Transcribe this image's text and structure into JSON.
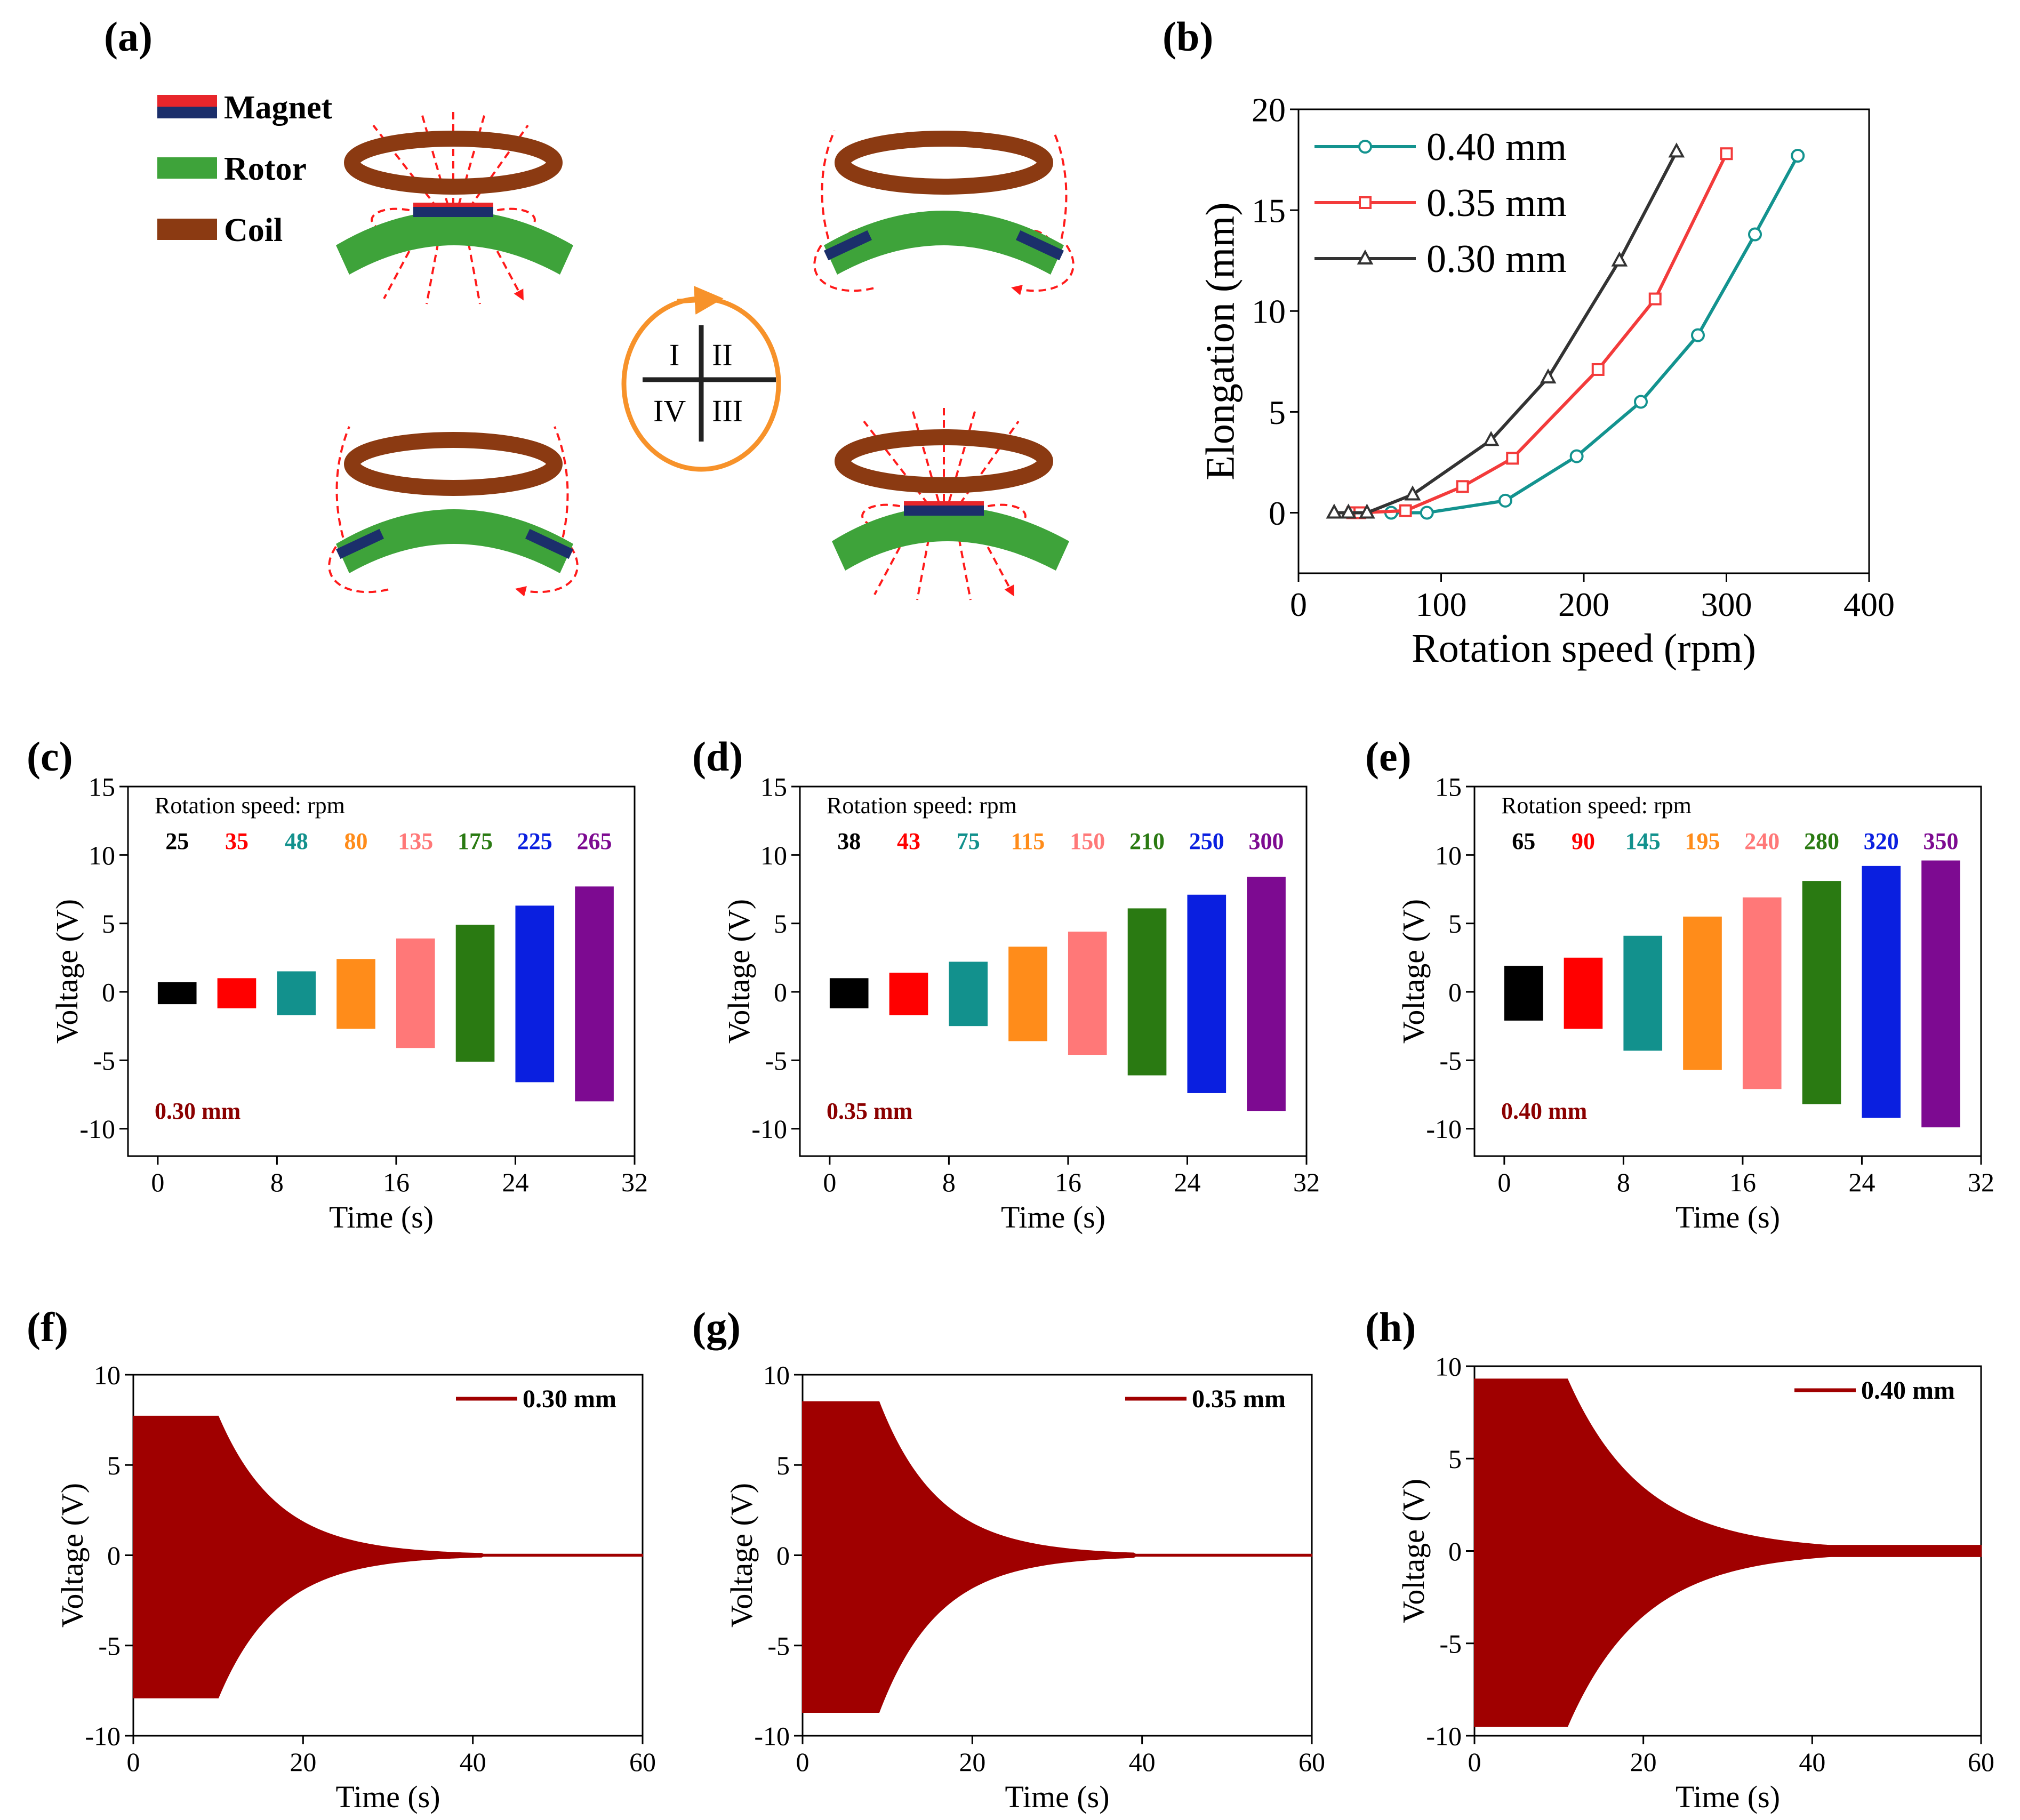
{
  "panel_labels": {
    "a": "(a)",
    "b": "(b)",
    "c": "(c)",
    "d": "(d)",
    "e": "(e)",
    "f": "(f)",
    "g": "(g)",
    "h": "(h)"
  },
  "legend_a": {
    "magnet": "Magnet",
    "rotor": "Rotor",
    "coil": "Coil"
  },
  "quadrants": {
    "q1": "I",
    "q2": "II",
    "q3": "III",
    "q4": "IV"
  },
  "colors": {
    "magnet_red": "#e8262b",
    "magnet_blue": "#1b2f6b",
    "rotor": "#3ea33a",
    "coil": "#8b3a12",
    "field": "#ff1a1a",
    "rotate": "#f7922a",
    "darkred": "#a00000"
  },
  "chart_data": [
    {
      "id": "b",
      "type": "line",
      "title": "",
      "xlabel": "Rotation speed (rpm)",
      "ylabel": "Elongation (mm)",
      "xlim": [
        0,
        400
      ],
      "ylim": [
        -3,
        20
      ],
      "xticks": [
        0,
        100,
        200,
        300,
        400
      ],
      "yticks": [
        0,
        5,
        10,
        15,
        20
      ],
      "series": [
        {
          "name": "0.40 mm",
          "color": "#13938f",
          "marker": "circle",
          "x": [
            65,
            90,
            145,
            195,
            240,
            280,
            320,
            350
          ],
          "y": [
            0,
            0,
            0.6,
            2.8,
            5.5,
            8.8,
            13.8,
            17.7
          ]
        },
        {
          "name": "0.35 mm",
          "color": "#f33b3b",
          "marker": "square",
          "x": [
            38,
            43,
            75,
            115,
            150,
            210,
            250,
            300
          ],
          "y": [
            0,
            0,
            0.1,
            1.3,
            2.7,
            7.1,
            10.6,
            17.8
          ]
        },
        {
          "name": "0.30 mm",
          "color": "#333333",
          "marker": "triangle",
          "x": [
            25,
            35,
            48,
            80,
            135,
            175,
            225,
            265
          ],
          "y": [
            0,
            0,
            0,
            0.9,
            3.6,
            6.7,
            12.5,
            17.9
          ]
        }
      ]
    },
    {
      "id": "c",
      "type": "bar",
      "xlabel": "Time (s)",
      "ylabel": "Voltage (V)",
      "xlim": [
        -2,
        32
      ],
      "ylim": [
        -12,
        15
      ],
      "xticks": [
        0,
        8,
        16,
        24,
        32
      ],
      "yticks": [
        -10,
        -5,
        0,
        5,
        10,
        15
      ],
      "speed_title": "Rotation speed: rpm",
      "thickness": "0.30 mm",
      "blocks": [
        {
          "speed": "25",
          "color": "#000000",
          "t0": 0,
          "t1": 2.6,
          "vmax": 0.7,
          "vmin": -0.9
        },
        {
          "speed": "35",
          "color": "#ff0000",
          "t0": 4,
          "t1": 6.6,
          "vmax": 1.0,
          "vmin": -1.2
        },
        {
          "speed": "48",
          "color": "#12918d",
          "t0": 8,
          "t1": 10.6,
          "vmax": 1.5,
          "vmin": -1.7
        },
        {
          "speed": "80",
          "color": "#ff8c1a",
          "t0": 12,
          "t1": 14.6,
          "vmax": 2.4,
          "vmin": -2.7
        },
        {
          "speed": "135",
          "color": "#ff7878",
          "t0": 16,
          "t1": 18.6,
          "vmax": 3.9,
          "vmin": -4.1
        },
        {
          "speed": "175",
          "color": "#2a7a12",
          "t0": 20,
          "t1": 22.6,
          "vmax": 4.9,
          "vmin": -5.1
        },
        {
          "speed": "225",
          "color": "#0a1fe0",
          "t0": 24,
          "t1": 26.6,
          "vmax": 6.3,
          "vmin": -6.6
        },
        {
          "speed": "265",
          "color": "#7d0a91",
          "t0": 28,
          "t1": 30.6,
          "vmax": 7.7,
          "vmin": -8.0
        }
      ]
    },
    {
      "id": "d",
      "type": "bar",
      "xlabel": "Time (s)",
      "ylabel": "Voltage (V)",
      "xlim": [
        -2,
        32
      ],
      "ylim": [
        -12,
        15
      ],
      "xticks": [
        0,
        8,
        16,
        24,
        32
      ],
      "yticks": [
        -10,
        -5,
        0,
        5,
        10,
        15
      ],
      "speed_title": "Rotation speed: rpm",
      "thickness": "0.35 mm",
      "blocks": [
        {
          "speed": "38",
          "color": "#000000",
          "t0": 0,
          "t1": 2.6,
          "vmax": 1.0,
          "vmin": -1.2
        },
        {
          "speed": "43",
          "color": "#ff0000",
          "t0": 4,
          "t1": 6.6,
          "vmax": 1.4,
          "vmin": -1.7
        },
        {
          "speed": "75",
          "color": "#12918d",
          "t0": 8,
          "t1": 10.6,
          "vmax": 2.2,
          "vmin": -2.5
        },
        {
          "speed": "115",
          "color": "#ff8c1a",
          "t0": 12,
          "t1": 14.6,
          "vmax": 3.3,
          "vmin": -3.6
        },
        {
          "speed": "150",
          "color": "#ff7878",
          "t0": 16,
          "t1": 18.6,
          "vmax": 4.4,
          "vmin": -4.6
        },
        {
          "speed": "210",
          "color": "#2a7a12",
          "t0": 20,
          "t1": 22.6,
          "vmax": 6.1,
          "vmin": -6.1
        },
        {
          "speed": "250",
          "color": "#0a1fe0",
          "t0": 24,
          "t1": 26.6,
          "vmax": 7.1,
          "vmin": -7.4
        },
        {
          "speed": "300",
          "color": "#7d0a91",
          "t0": 28,
          "t1": 30.6,
          "vmax": 8.4,
          "vmin": -8.7
        }
      ]
    },
    {
      "id": "e",
      "type": "bar",
      "xlabel": "Time (s)",
      "ylabel": "Voltage (V)",
      "xlim": [
        -2,
        32
      ],
      "ylim": [
        -12,
        15
      ],
      "xticks": [
        0,
        8,
        16,
        24,
        32
      ],
      "yticks": [
        -10,
        -5,
        0,
        5,
        10,
        15
      ],
      "speed_title": "Rotation speed: rpm",
      "thickness": "0.40 mm",
      "blocks": [
        {
          "speed": "65",
          "color": "#000000",
          "t0": 0,
          "t1": 2.6,
          "vmax": 1.9,
          "vmin": -2.1
        },
        {
          "speed": "90",
          "color": "#ff0000",
          "t0": 4,
          "t1": 6.6,
          "vmax": 2.5,
          "vmin": -2.7
        },
        {
          "speed": "145",
          "color": "#12918d",
          "t0": 8,
          "t1": 10.6,
          "vmax": 4.1,
          "vmin": -4.3
        },
        {
          "speed": "195",
          "color": "#ff8c1a",
          "t0": 12,
          "t1": 14.6,
          "vmax": 5.5,
          "vmin": -5.7
        },
        {
          "speed": "240",
          "color": "#ff7878",
          "t0": 16,
          "t1": 18.6,
          "vmax": 6.9,
          "vmin": -7.1
        },
        {
          "speed": "280",
          "color": "#2a7a12",
          "t0": 20,
          "t1": 22.6,
          "vmax": 8.1,
          "vmin": -8.2
        },
        {
          "speed": "320",
          "color": "#0a1fe0",
          "t0": 24,
          "t1": 26.6,
          "vmax": 9.2,
          "vmin": -9.2
        },
        {
          "speed": "350",
          "color": "#7d0a91",
          "t0": 28,
          "t1": 30.6,
          "vmax": 9.6,
          "vmin": -9.9
        }
      ]
    },
    {
      "id": "f",
      "type": "area",
      "xlabel": "Time (s)",
      "ylabel": "Voltage (V)",
      "xlim": [
        0,
        60
      ],
      "ylim": [
        -10,
        10
      ],
      "xticks": [
        0,
        20,
        40,
        60
      ],
      "yticks": [
        -10,
        -5,
        0,
        5,
        10
      ],
      "legend": "0.30 mm",
      "color": "#a00000",
      "envelope": {
        "t_flat": 10,
        "v_pos": 7.7,
        "v_neg": -7.9,
        "t_decay": 7,
        "t_end": 41,
        "residual": 0.1
      }
    },
    {
      "id": "g",
      "type": "area",
      "xlabel": "Time (s)",
      "ylabel": "Voltage (V)",
      "xlim": [
        0,
        60
      ],
      "ylim": [
        -10,
        10
      ],
      "xticks": [
        0,
        20,
        40,
        60
      ],
      "yticks": [
        -10,
        -5,
        0,
        5,
        10
      ],
      "legend": "0.35 mm",
      "color": "#a00000",
      "envelope": {
        "t_flat": 9,
        "v_pos": 8.5,
        "v_neg": -8.7,
        "t_decay": 7,
        "t_end": 39,
        "residual": 0.1
      }
    },
    {
      "id": "h",
      "type": "area",
      "xlabel": "Time (s)",
      "ylabel": "Voltage (V)",
      "xlim": [
        0,
        60
      ],
      "ylim": [
        -10,
        10
      ],
      "xticks": [
        0,
        20,
        40,
        60
      ],
      "yticks": [
        -10,
        -5,
        0,
        5,
        10
      ],
      "legend": "0.40 mm",
      "color": "#a00000",
      "envelope": {
        "t_flat": 11,
        "v_pos": 9.3,
        "v_neg": -9.5,
        "t_decay": 9,
        "t_end": 60,
        "residual": 0.3
      }
    }
  ]
}
